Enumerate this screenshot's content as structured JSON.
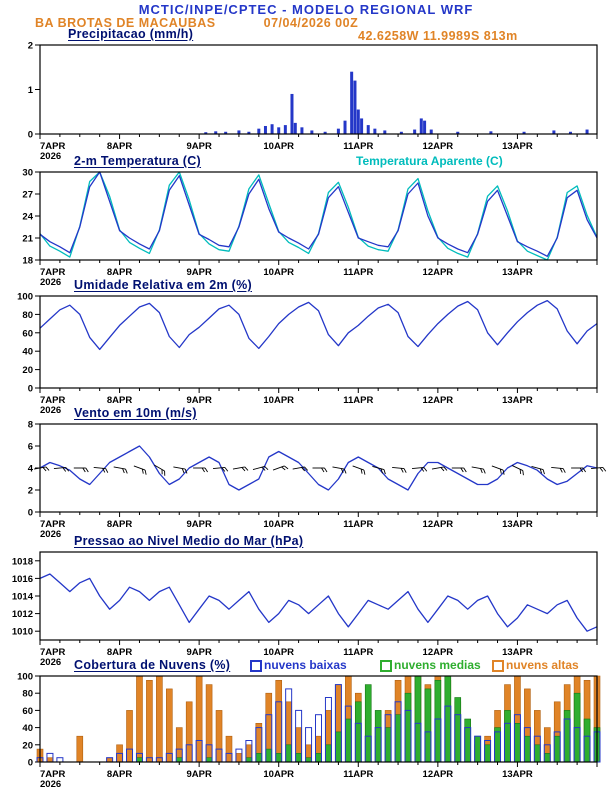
{
  "header": {
    "title": "MCTIC/INPE/CPTEC - MODELO REGIONAL WRF",
    "station": "BA BROTAS DE MACAUBAS",
    "run_datetime": "07/04/2026 00Z",
    "location": "42.6258W 11.9989S 813m"
  },
  "x_axis": {
    "tick_labels": [
      "7APR",
      "8APR",
      "9APR",
      "10APR",
      "11APR",
      "12APR",
      "13APR"
    ],
    "year": "2026",
    "hours_total": 168,
    "major_tick_hours": 24,
    "minor_tick_hours": 6
  },
  "colors": {
    "line_blue": "#2437c8",
    "cyan": "#00bcbc",
    "orange": "#e08427",
    "orange_edge": "#b06010",
    "green": "#2fae2f",
    "green_edge": "#157515",
    "panel_title": "#001070",
    "black": "#000000"
  },
  "chart_data": [
    {
      "id": "precipitation",
      "type": "bar",
      "title": "Precipitacao (mm/h)",
      "ylabel": "mm/h",
      "ylim": [
        0,
        2
      ],
      "yticks": [
        0,
        1,
        2
      ],
      "bars_hour_value": [
        [
          50,
          0.04
        ],
        [
          53,
          0.06
        ],
        [
          56,
          0.05
        ],
        [
          60,
          0.08
        ],
        [
          63,
          0.05
        ],
        [
          66,
          0.12
        ],
        [
          68,
          0.18
        ],
        [
          70,
          0.22
        ],
        [
          72,
          0.15
        ],
        [
          74,
          0.2
        ],
        [
          76,
          0.9
        ],
        [
          77,
          0.25
        ],
        [
          79,
          0.15
        ],
        [
          82,
          0.08
        ],
        [
          86,
          0.05
        ],
        [
          90,
          0.12
        ],
        [
          92,
          0.3
        ],
        [
          94,
          1.4
        ],
        [
          95,
          1.2
        ],
        [
          96,
          0.55
        ],
        [
          97,
          0.35
        ],
        [
          99,
          0.2
        ],
        [
          101,
          0.12
        ],
        [
          104,
          0.08
        ],
        [
          109,
          0.05
        ],
        [
          113,
          0.1
        ],
        [
          115,
          0.35
        ],
        [
          116,
          0.3
        ],
        [
          118,
          0.1
        ],
        [
          126,
          0.05
        ],
        [
          136,
          0.06
        ],
        [
          146,
          0.05
        ],
        [
          155,
          0.08
        ],
        [
          160,
          0.05
        ],
        [
          165,
          0.1
        ]
      ]
    },
    {
      "id": "temperature",
      "type": "line",
      "title": "2-m Temperatura (C)",
      "legend": "Temperatura Aparente (C)",
      "ylim": [
        18,
        30
      ],
      "yticks": [
        18,
        21,
        24,
        27,
        30
      ],
      "step_hours": 3,
      "series": [
        {
          "name": "2-m Temperatura (C)",
          "color_key": "line_blue",
          "values": [
            21.5,
            20.5,
            19.8,
            19.0,
            22.5,
            28.0,
            30.0,
            26.0,
            22.0,
            21.0,
            20.2,
            19.5,
            22.0,
            27.5,
            29.5,
            25.5,
            21.5,
            20.8,
            20.0,
            19.8,
            22.5,
            27.0,
            29.0,
            25.0,
            21.8,
            21.0,
            20.3,
            19.5,
            21.5,
            26.5,
            28.0,
            24.5,
            21.0,
            20.5,
            20.0,
            19.8,
            22.0,
            27.0,
            28.5,
            24.0,
            21.0,
            20.2,
            19.5,
            19.0,
            21.5,
            26.0,
            27.5,
            24.0,
            20.5,
            19.8,
            19.2,
            18.5,
            21.0,
            26.5,
            27.5,
            23.5,
            21.0
          ]
        },
        {
          "name": "Temperatura Aparente (C)",
          "color_key": "cyan",
          "values": [
            21.6,
            19.9,
            19.2,
            18.4,
            22.6,
            28.7,
            30.2,
            26.7,
            22.1,
            20.4,
            19.6,
            18.9,
            22.1,
            28.2,
            30.0,
            26.2,
            21.6,
            20.2,
            19.4,
            19.2,
            22.6,
            27.7,
            29.6,
            25.7,
            21.9,
            20.4,
            19.7,
            18.9,
            21.6,
            27.2,
            28.6,
            25.2,
            21.1,
            19.9,
            19.4,
            19.2,
            22.1,
            27.7,
            29.1,
            24.7,
            21.1,
            19.6,
            18.9,
            18.4,
            21.6,
            26.7,
            28.1,
            24.7,
            20.6,
            19.2,
            18.6,
            18.0,
            21.1,
            27.2,
            28.1,
            24.1,
            21.1
          ]
        }
      ]
    },
    {
      "id": "humidity",
      "type": "line",
      "title": "Umidade Relativa em 2m (%)",
      "ylim": [
        0,
        100
      ],
      "yticks": [
        0,
        20,
        40,
        60,
        80,
        100
      ],
      "step_hours": 3,
      "series": [
        {
          "name": "Umidade Relativa em 2m (%)",
          "color_key": "line_blue",
          "values": [
            65,
            75,
            85,
            90,
            80,
            55,
            42,
            55,
            68,
            78,
            88,
            92,
            82,
            56,
            44,
            58,
            66,
            76,
            86,
            90,
            80,
            54,
            43,
            56,
            70,
            80,
            88,
            93,
            84,
            58,
            46,
            60,
            68,
            78,
            87,
            91,
            82,
            56,
            45,
            58,
            70,
            80,
            89,
            94,
            85,
            60,
            47,
            60,
            72,
            82,
            90,
            95,
            86,
            62,
            48,
            62,
            70
          ]
        }
      ]
    },
    {
      "id": "wind",
      "type": "line-barbs",
      "title": "Vento em 10m (m/s)",
      "ylim": [
        0,
        8
      ],
      "yticks": [
        0,
        2,
        4,
        6,
        8
      ],
      "step_hours": 3,
      "series": [
        {
          "name": "Vento em 10m (m/s)",
          "color_key": "line_blue",
          "values": [
            4.0,
            4.5,
            4.2,
            3.8,
            3.0,
            2.5,
            3.5,
            4.5,
            5.0,
            5.5,
            6.0,
            5.0,
            3.5,
            2.5,
            3.0,
            4.0,
            4.5,
            5.0,
            4.5,
            2.5,
            2.0,
            2.5,
            3.0,
            5.0,
            5.5,
            5.0,
            4.5,
            3.5,
            2.5,
            2.0,
            3.0,
            4.5,
            5.0,
            4.5,
            4.0,
            3.0,
            2.5,
            2.0,
            3.5,
            4.5,
            4.5,
            4.0,
            3.5,
            3.0,
            2.5,
            2.5,
            3.0,
            4.0,
            4.5,
            4.2,
            3.8,
            3.0,
            2.5,
            2.8,
            3.5,
            4.2,
            4.0
          ]
        }
      ],
      "barbs": {
        "anchor_value": 4,
        "step_hours": 6,
        "directions_deg": [
          80,
          85,
          90,
          95,
          100,
          110,
          120,
          100,
          90,
          85,
          80,
          75,
          70,
          80,
          90,
          100,
          110,
          105,
          95,
          85,
          80,
          90,
          100,
          110,
          115,
          105,
          95,
          90,
          85
        ]
      }
    },
    {
      "id": "pressure",
      "type": "line",
      "title": "Pressao ao Nivel Medio do Mar (hPa)",
      "ylim": [
        1009,
        1019
      ],
      "yticks": [
        1010,
        1012,
        1014,
        1016,
        1018
      ],
      "step_hours": 3,
      "series": [
        {
          "name": "Pressao ao Nivel Medio do Mar (hPa)",
          "color_key": "line_blue",
          "values": [
            1016.0,
            1016.5,
            1015.5,
            1014.5,
            1015.5,
            1016.0,
            1014.0,
            1012.5,
            1013.5,
            1015.0,
            1014.5,
            1013.5,
            1014.5,
            1015.0,
            1013.0,
            1011.0,
            1012.5,
            1014.0,
            1013.5,
            1012.5,
            1013.5,
            1014.5,
            1012.5,
            1011.0,
            1012.0,
            1013.5,
            1013.0,
            1012.0,
            1013.0,
            1014.0,
            1012.0,
            1010.5,
            1012.0,
            1013.5,
            1013.0,
            1012.5,
            1013.5,
            1014.5,
            1012.5,
            1011.0,
            1012.5,
            1014.0,
            1013.5,
            1012.5,
            1013.5,
            1014.0,
            1012.0,
            1010.5,
            1011.5,
            1013.0,
            1012.5,
            1012.0,
            1013.0,
            1013.5,
            1011.5,
            1010.0,
            1010.5
          ]
        }
      ]
    },
    {
      "id": "clouds",
      "type": "multibar",
      "title": "Cobertura de Nuvens (%)",
      "ylim": [
        0,
        100
      ],
      "yticks": [
        0,
        20,
        40,
        60,
        80,
        100
      ],
      "step_hours": 3,
      "series": [
        {
          "name": "nuvens baixas",
          "style": "outline",
          "color_key": "line_blue",
          "values": [
            5,
            10,
            5,
            0,
            0,
            0,
            0,
            5,
            10,
            15,
            10,
            5,
            5,
            10,
            15,
            20,
            25,
            20,
            15,
            10,
            15,
            25,
            40,
            55,
            70,
            85,
            60,
            40,
            55,
            75,
            90,
            65,
            45,
            30,
            40,
            55,
            70,
            60,
            45,
            35,
            50,
            65,
            55,
            40,
            30,
            25,
            35,
            45,
            55,
            40,
            30,
            20,
            35,
            50,
            40,
            30,
            35
          ]
        },
        {
          "name": "nuvens medias",
          "style": "fill",
          "color_key": "green",
          "values": [
            0,
            0,
            0,
            0,
            0,
            0,
            0,
            0,
            0,
            0,
            5,
            0,
            0,
            0,
            5,
            0,
            0,
            5,
            0,
            0,
            0,
            5,
            10,
            15,
            10,
            20,
            10,
            5,
            10,
            20,
            35,
            50,
            70,
            90,
            60,
            40,
            55,
            80,
            100,
            85,
            95,
            100,
            75,
            50,
            30,
            20,
            40,
            60,
            45,
            30,
            20,
            10,
            30,
            60,
            80,
            50,
            40
          ]
        },
        {
          "name": "nuvens altas",
          "style": "fill",
          "color_key": "orange",
          "values": [
            15,
            5,
            0,
            0,
            30,
            0,
            0,
            5,
            20,
            60,
            100,
            95,
            100,
            85,
            40,
            70,
            100,
            90,
            60,
            30,
            10,
            20,
            45,
            80,
            95,
            70,
            40,
            20,
            30,
            60,
            90,
            100,
            80,
            50,
            30,
            60,
            95,
            100,
            100,
            90,
            100,
            95,
            70,
            40,
            20,
            30,
            60,
            90,
            100,
            85,
            60,
            40,
            70,
            90,
            100,
            95,
            100
          ]
        }
      ]
    }
  ]
}
